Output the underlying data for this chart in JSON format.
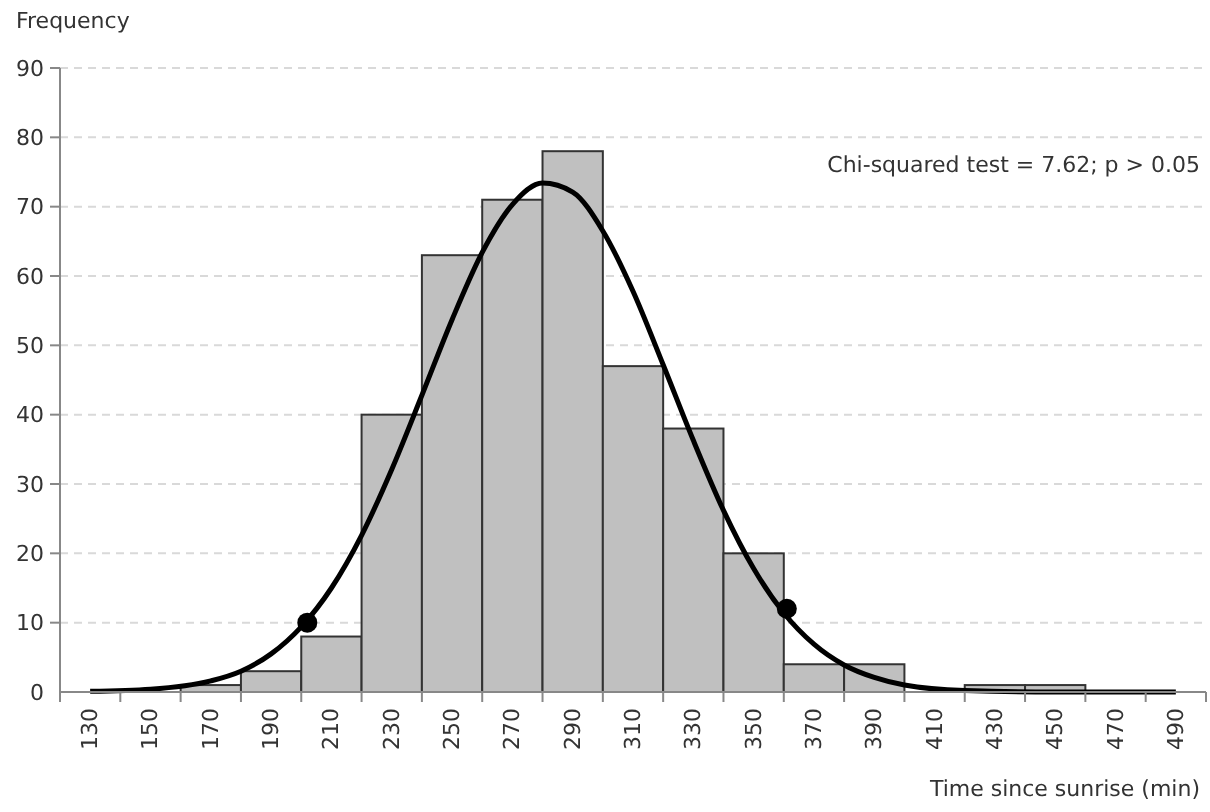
{
  "chart_data": {
    "type": "histogram",
    "xlabel": "Time since sunrise (min)",
    "ylabel": "Frequency",
    "annotations": [
      "Chi-squared test = 7.62; p > 0.05"
    ],
    "xlim": [
      120,
      500
    ],
    "xticks": [
      {
        "value": 120,
        "label": null
      },
      130,
      {
        "value": 140,
        "label": null
      },
      150,
      {
        "value": 160,
        "label": null
      },
      170,
      {
        "value": 180,
        "label": null
      },
      190,
      {
        "value": 200,
        "label": null
      },
      210,
      {
        "value": 220,
        "label": null
      },
      230,
      {
        "value": 240,
        "label": null
      },
      250,
      {
        "value": 260,
        "label": null
      },
      270,
      {
        "value": 280,
        "label": null
      },
      290,
      {
        "value": 300,
        "label": null
      },
      310,
      {
        "value": 320,
        "label": null
      },
      330,
      {
        "value": 340,
        "label": null
      },
      350,
      {
        "value": 360,
        "label": null
      },
      370,
      {
        "value": 380,
        "label": null
      },
      390,
      {
        "value": 400,
        "label": null
      },
      410,
      {
        "value": 420,
        "label": null
      },
      430,
      {
        "value": 440,
        "label": null
      },
      450,
      {
        "value": 460,
        "label": null
      },
      470,
      {
        "value": 480,
        "label": null
      },
      490,
      {
        "value": 500,
        "label": null
      }
    ],
    "ylim": [
      0,
      90
    ],
    "yticks": [
      0,
      10,
      20,
      30,
      40,
      50,
      60,
      70,
      80,
      90
    ],
    "grid": "y",
    "series": [
      {
        "color": "#c0c0c0",
        "bins": [
          120,
          140,
          160,
          180,
          200,
          220,
          240,
          260,
          280,
          300,
          320,
          340,
          360,
          380,
          400,
          420,
          440,
          460,
          480,
          500
        ],
        "values": [
          0,
          0,
          1,
          3,
          8,
          40,
          63,
          71,
          78,
          47,
          38,
          20,
          4,
          4,
          0,
          1,
          1,
          0,
          0
        ]
      },
      {
        "type": "line",
        "color": "#000000",
        "line_style": "solid",
        "marker": "none",
        "x": [
          130,
          150,
          170,
          180,
          190,
          200,
          210,
          220,
          230,
          240,
          250,
          260,
          270,
          280,
          290,
          300,
          310,
          320,
          330,
          340,
          350,
          360,
          370,
          380,
          390,
          400,
          420,
          450,
          490
        ],
        "values": [
          0.1,
          0.4,
          1.6,
          3,
          5.5,
          9.4,
          15,
          22.6,
          32.1,
          42.8,
          53.7,
          63.4,
          70.3,
          73.4,
          72.1,
          66.5,
          57.8,
          47.2,
          36.3,
          26.2,
          17.8,
          11.4,
          6.9,
          3.9,
          2.1,
          1,
          0.2,
          0,
          0
        ]
      },
      {
        "type": "scatter",
        "color": "#000000",
        "marker": "circle",
        "x": [
          202,
          361
        ],
        "values": [
          10,
          12
        ]
      }
    ]
  }
}
